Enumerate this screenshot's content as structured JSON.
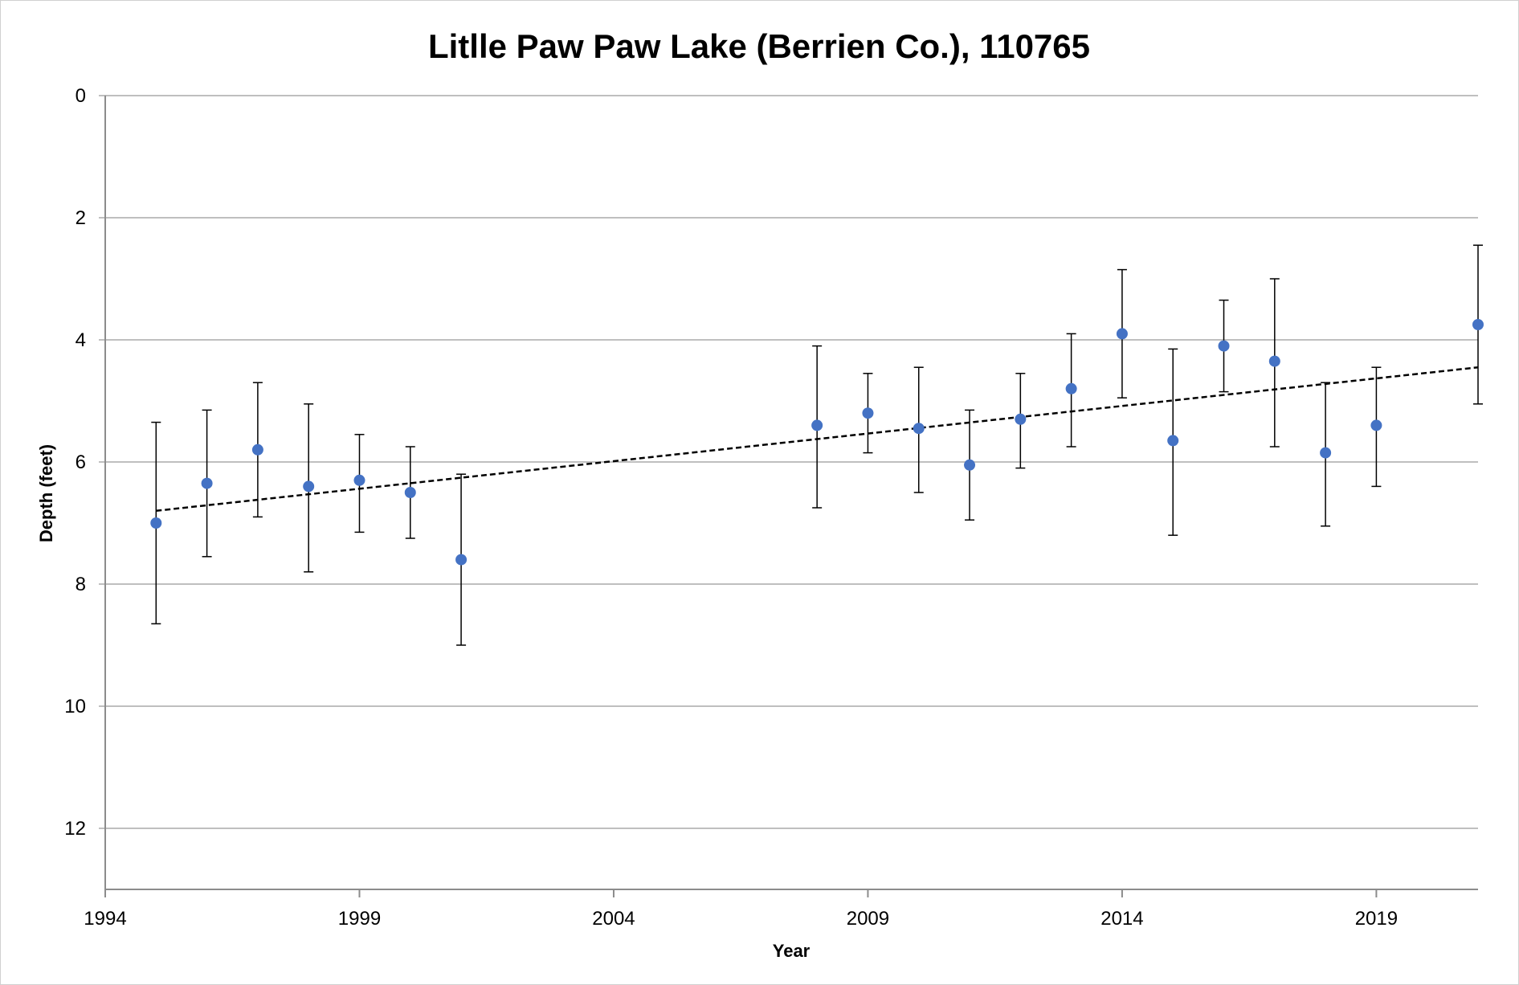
{
  "chart_data": {
    "type": "scatter",
    "title": "Litlle Paw Paw Lake (Berrien Co.), 110765",
    "xlabel": "Year",
    "ylabel": "Depth (feet)",
    "xlim": [
      1994,
      2021
    ],
    "ylim": [
      0,
      13
    ],
    "y_inverted": true,
    "grid": "horizontal",
    "x_ticks": [
      1994,
      1999,
      2004,
      2009,
      2014,
      2019
    ],
    "y_ticks": [
      0,
      2,
      4,
      6,
      8,
      10,
      12
    ],
    "marker_color": "#4472c4",
    "series": [
      {
        "x": [
          1995,
          1996,
          1997,
          1998,
          1999,
          2000,
          2001,
          2008,
          2009,
          2010,
          2011,
          2012,
          2013,
          2014,
          2015,
          2016,
          2017,
          2018,
          2019,
          2021
        ],
        "y": [
          7.0,
          6.35,
          5.8,
          6.4,
          6.3,
          6.5,
          7.6,
          5.4,
          5.2,
          5.45,
          6.05,
          5.3,
          4.8,
          3.9,
          5.65,
          4.1,
          4.35,
          5.85,
          5.4,
          3.75
        ],
        "y_low": [
          5.35,
          5.15,
          4.7,
          5.05,
          5.55,
          5.75,
          6.2,
          4.1,
          4.55,
          4.45,
          5.15,
          4.55,
          3.9,
          2.85,
          4.15,
          3.35,
          3.0,
          4.7,
          4.45,
          2.45
        ],
        "y_high": [
          8.65,
          7.55,
          6.9,
          7.8,
          7.15,
          7.25,
          9.0,
          6.75,
          5.85,
          6.5,
          6.95,
          6.1,
          5.75,
          4.95,
          7.2,
          4.85,
          5.75,
          7.05,
          6.4,
          5.05
        ]
      }
    ],
    "trendline": {
      "style": "dashed",
      "x": [
        1995,
        2021
      ],
      "y": [
        6.8,
        4.45
      ]
    }
  }
}
